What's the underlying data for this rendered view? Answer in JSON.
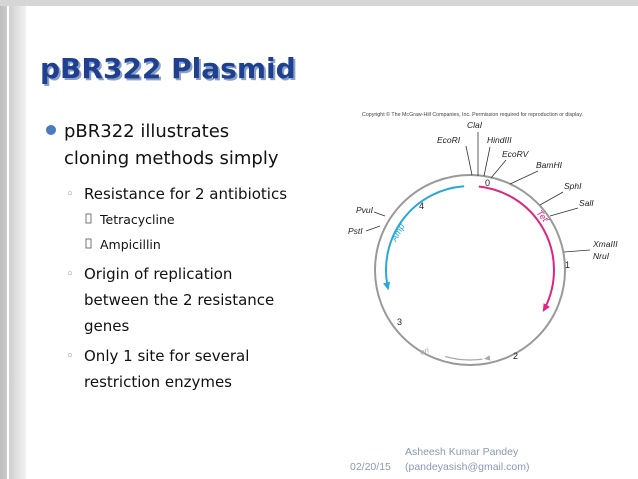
{
  "slide": {
    "title": "pBR322 Plasmid",
    "bullet": [
      "pBR322 illustrates",
      "cloning methods simply"
    ],
    "sub_bullets": [
      {
        "lines": [
          "Resistance for 2 antibiotics"
        ],
        "items": [
          "Tetracycline",
          "Ampicillin"
        ]
      },
      {
        "lines": [
          "Origin of replication",
          "between the 2 resistance",
          "genes"
        ]
      },
      {
        "lines": [
          "Only 1 site for several",
          "restriction enzymes"
        ]
      }
    ]
  },
  "diagram": {
    "copyright": "Copyright © The McGraw-Hill Companies, Inc. Permission required for reproduction or display.",
    "sites": [
      "ClaI",
      "EcoRI",
      "HindIII",
      "EcoRV",
      "BamHI",
      "SphI",
      "SalI",
      "XmaIII",
      "NruI",
      "PvuI",
      "PstI"
    ],
    "numbers": [
      "0",
      "1",
      "2",
      "3",
      "4"
    ],
    "amp": {
      "text": "Amp",
      "sup": "r"
    },
    "tet": {
      "text": "Tet",
      "sup": "r"
    },
    "ori": "ori"
  },
  "footer": {
    "date": "02/20/15",
    "author": "Asheesh Kumar Pandey",
    "email": "(pandeyasish@gmail.com)"
  }
}
